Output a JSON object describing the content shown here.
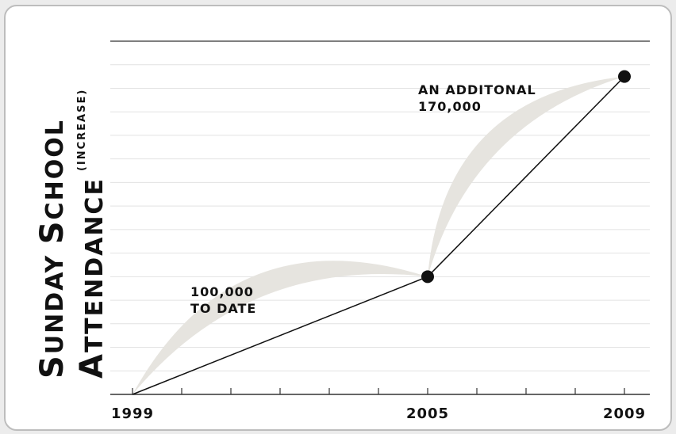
{
  "chart_data": {
    "type": "line",
    "ylabel_line1": "Sunday School",
    "ylabel_line2": "Attendance",
    "ylabel_suffix": "(increase)",
    "x": [
      1999,
      2005,
      2009
    ],
    "y": [
      0,
      100000,
      270000
    ],
    "xlim": [
      1999,
      2009
    ],
    "ylim": [
      0,
      300000
    ],
    "xtick_labels": [
      "1999",
      "2005",
      "2009"
    ],
    "annotations": [
      {
        "lines": [
          "100,000",
          "TO DATE"
        ],
        "anchor_x": 2002
      },
      {
        "lines": [
          "AN ADDITONAL",
          "170,000"
        ],
        "anchor_x": 2007
      }
    ],
    "grid": true,
    "colors": {
      "line": "#111111",
      "arc": "#e6e4df",
      "grid": "#e2e2e2",
      "marker": "#111111"
    }
  }
}
